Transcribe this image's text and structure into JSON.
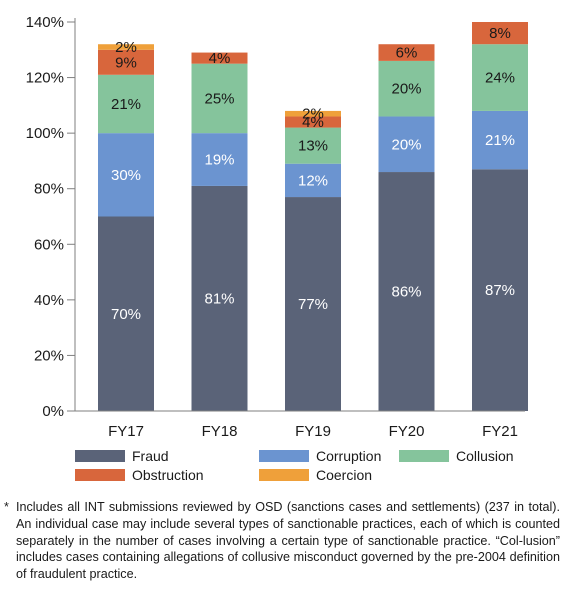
{
  "chart_data": {
    "type": "bar",
    "stacked": true,
    "categories": [
      "FY17",
      "FY18",
      "FY19",
      "FY20",
      "FY21"
    ],
    "y_tick_labels": [
      "0%",
      "20%",
      "40%",
      "60%",
      "80%",
      "100%",
      "120%",
      "140%"
    ],
    "ylim": [
      0,
      140
    ],
    "grid": false,
    "legend_placement": "bottom",
    "series": [
      {
        "name": "Fraud",
        "color": "#5a6378",
        "values": [
          70,
          81,
          77,
          86,
          87
        ]
      },
      {
        "name": "Corruption",
        "color": "#6b94d0",
        "values": [
          30,
          19,
          12,
          20,
          21
        ]
      },
      {
        "name": "Collusion",
        "color": "#85c49c",
        "values": [
          21,
          25,
          13,
          20,
          24
        ]
      },
      {
        "name": "Obstruction",
        "color": "#d8663c",
        "values": [
          9,
          4,
          4,
          6,
          8
        ]
      },
      {
        "name": "Coercion",
        "color": "#efa03a",
        "values": [
          2,
          null,
          2,
          null,
          null
        ]
      }
    ]
  },
  "footnote": {
    "marker": "*",
    "text": "Includes all INT submissions reviewed by OSD (sanctions cases and settlements) (237 in total). An individual case may include several types of sanctionable practices, each of which is counted separately in the number of cases involving a certain type of sanctionable practice. “Col-lusion” includes cases containing allegations of collusive misconduct governed by the pre-2004 definition of fraudulent practice."
  }
}
